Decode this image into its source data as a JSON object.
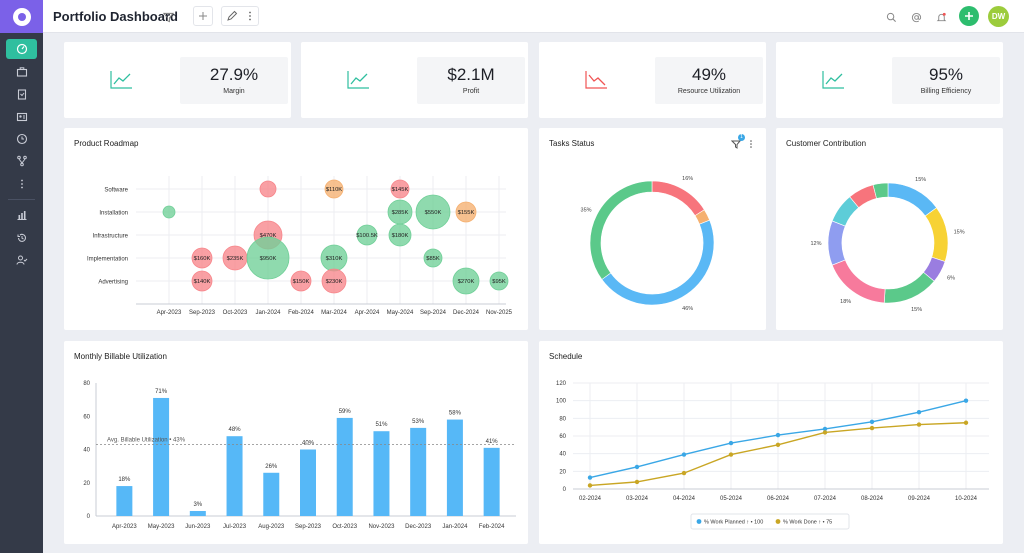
{
  "header": {
    "title": "Portfolio Dashboard",
    "avatar_initials": "DW"
  },
  "colors": {
    "accent": "#2fbf9f",
    "brand": "#7b61e8",
    "bar": "#56b8f7",
    "planned": "#3aa7e6",
    "done": "#c9a624"
  },
  "kpis": [
    {
      "value": "27.9%",
      "label": "Margin",
      "trend": "up"
    },
    {
      "value": "$2.1M",
      "label": "Profit",
      "trend": "up"
    },
    {
      "value": "49%",
      "label": "Resource Utilization",
      "trend": "down"
    },
    {
      "value": "95%",
      "label": "Billing Efficiency",
      "trend": "up"
    }
  ],
  "cards": {
    "roadmap": "Product Roadmap",
    "tasks": "Tasks Status",
    "tasks_filter_badge": "1",
    "customer": "Customer Contribution",
    "billable": "Monthly Billable Utilization",
    "schedule": "Schedule"
  },
  "chart_data": [
    {
      "type": "scatter",
      "title": "Product Roadmap",
      "categories_y": [
        "Software",
        "Installation",
        "Infrastructure",
        "Implementation",
        "Advertising"
      ],
      "x_ticks": [
        "Apr-2023",
        "Sep-2023",
        "Oct-2023",
        "Jan-2024",
        "Feb-2024",
        "Mar-2024",
        "Apr-2024",
        "May-2024",
        "Sep-2024",
        "Dec-2024",
        "Nov-2025"
      ],
      "points": [
        {
          "x": "Jan-2024",
          "y": "Software",
          "size": 8,
          "label": "",
          "color": "#f7858a"
        },
        {
          "x": "Mar-2024",
          "y": "Software",
          "size": 9,
          "label": "$110K",
          "color": "#f5b070"
        },
        {
          "x": "May-2024",
          "y": "Software",
          "size": 9,
          "label": "$145K",
          "color": "#f7858a"
        },
        {
          "x": "Apr-2023",
          "y": "Installation",
          "size": 6,
          "label": "",
          "color": "#6fcf97"
        },
        {
          "x": "May-2024",
          "y": "Installation",
          "size": 12,
          "label": "$285K",
          "color": "#6fcf97"
        },
        {
          "x": "Sep-2024",
          "y": "Installation",
          "size": 17,
          "label": "$550K",
          "color": "#6fcf97"
        },
        {
          "x": "Dec-2024",
          "y": "Installation",
          "size": 10,
          "label": "$155K",
          "color": "#f5b070"
        },
        {
          "x": "Jan-2024",
          "y": "Infrastructure",
          "size": 14,
          "label": "$470K",
          "color": "#f7858a"
        },
        {
          "x": "Apr-2024",
          "y": "Infrastructure",
          "size": 10,
          "label": "$100.5K",
          "color": "#6fcf97"
        },
        {
          "x": "May-2024",
          "y": "Infrastructure",
          "size": 11,
          "label": "$180K",
          "color": "#6fcf97"
        },
        {
          "x": "Sep-2023",
          "y": "Implementation",
          "size": 10,
          "label": "$160K",
          "color": "#f7858a"
        },
        {
          "x": "Oct-2023",
          "y": "Implementation",
          "size": 12,
          "label": "$235K",
          "color": "#f7858a"
        },
        {
          "x": "Jan-2024",
          "y": "Implementation",
          "size": 21,
          "label": "$950K",
          "color": "#6fcf97"
        },
        {
          "x": "Mar-2024",
          "y": "Implementation",
          "size": 13,
          "label": "$310K",
          "color": "#6fcf97"
        },
        {
          "x": "Sep-2024",
          "y": "Implementation",
          "size": 9,
          "label": "$85K",
          "color": "#6fcf97"
        },
        {
          "x": "Sep-2023",
          "y": "Advertising",
          "size": 10,
          "label": "$140K",
          "color": "#f7858a"
        },
        {
          "x": "Feb-2024",
          "y": "Advertising",
          "size": 10,
          "label": "$150K",
          "color": "#f7858a"
        },
        {
          "x": "Mar-2024",
          "y": "Advertising",
          "size": 12,
          "label": "$230K",
          "color": "#f7858a"
        },
        {
          "x": "Dec-2024",
          "y": "Advertising",
          "size": 13,
          "label": "$270K",
          "color": "#6fcf97"
        },
        {
          "x": "Nov-2025",
          "y": "Advertising",
          "size": 9,
          "label": "$95K",
          "color": "#6fcf97"
        }
      ]
    },
    {
      "type": "pie",
      "title": "Tasks Status",
      "donut": true,
      "slices": [
        {
          "value": 16,
          "label": "16%",
          "color": "#f7747c"
        },
        {
          "value": 3,
          "label": "",
          "color": "#f5b070"
        },
        {
          "value": 46,
          "label": "46%",
          "color": "#5ab8f5"
        },
        {
          "value": 35,
          "label": "35%",
          "color": "#5bc98a"
        }
      ]
    },
    {
      "type": "pie",
      "title": "Customer Contribution",
      "donut": true,
      "slices": [
        {
          "value": 15,
          "label": "15%",
          "color": "#5ab8f5"
        },
        {
          "value": 15,
          "label": "15%",
          "color": "#f7d234"
        },
        {
          "value": 6,
          "label": "6%",
          "color": "#9a7de0"
        },
        {
          "value": 15,
          "label": "15%",
          "color": "#5bc98a"
        },
        {
          "value": 18,
          "label": "18%",
          "color": "#f77a9c"
        },
        {
          "value": 12,
          "label": "12%",
          "color": "#8f9df0"
        },
        {
          "value": 8,
          "label": "",
          "color": "#5dcdd8"
        },
        {
          "value": 7,
          "label": "",
          "color": "#f7747c"
        },
        {
          "value": 4,
          "label": "",
          "color": "#5bc98a"
        }
      ]
    },
    {
      "type": "bar",
      "title": "Monthly Billable Utilization",
      "categories": [
        "Apr-2023",
        "May-2023",
        "Jun-2023",
        "Jul-2023",
        "Aug-2023",
        "Sep-2023",
        "Oct-2023",
        "Nov-2023",
        "Dec-2023",
        "Jan-2024",
        "Feb-2024"
      ],
      "values": [
        18,
        71,
        3,
        48,
        26,
        40,
        59,
        51,
        53,
        58,
        41
      ],
      "value_labels": [
        "18%",
        "71%",
        "3%",
        "48%",
        "26%",
        "40%",
        "59%",
        "51%",
        "53%",
        "58%",
        "41%"
      ],
      "ylim": [
        0,
        80
      ],
      "yticks": [
        0,
        20,
        40,
        60,
        80
      ],
      "average": 43,
      "average_label": "Avg. Billable Utilization • 43%"
    },
    {
      "type": "line",
      "title": "Schedule",
      "categories": [
        "02-2024",
        "03-2024",
        "04-2024",
        "05-2024",
        "06-2024",
        "07-2024",
        "08-2024",
        "09-2024",
        "10-2024"
      ],
      "ylim": [
        0,
        120
      ],
      "yticks": [
        0,
        20,
        40,
        60,
        80,
        100,
        120
      ],
      "series": [
        {
          "name": "% Work Planned ↑ • 100",
          "values": [
            13,
            25,
            39,
            52,
            61,
            68,
            76,
            87,
            100
          ],
          "color": "#3aa7e6"
        },
        {
          "name": "% Work Done ↑ • 75",
          "values": [
            4,
            8,
            18,
            39,
            50,
            64,
            69,
            73,
            75
          ],
          "color": "#c9a624"
        }
      ],
      "legend": "bottom-center"
    }
  ]
}
